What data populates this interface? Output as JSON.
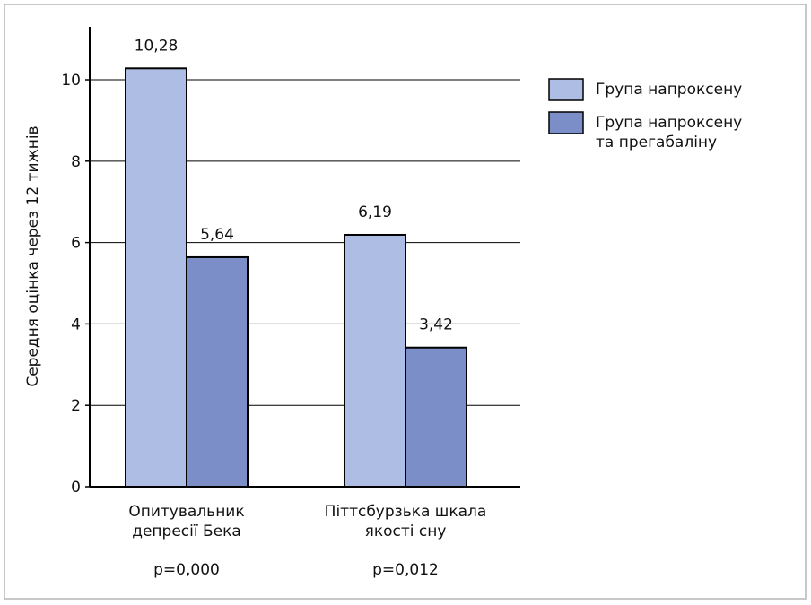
{
  "chart_data": {
    "type": "bar",
    "y_label": "Середня оцінка через 12 тижнів",
    "categories": [
      "Опитувальник\nдепресії Бека",
      "Піттсбурзька шкала\nякості сну"
    ],
    "annotations": [
      "p=0,000",
      "p=0,012"
    ],
    "series": [
      {
        "name": "Група напроксену",
        "color": "#aebde3",
        "values": [
          10.28,
          6.19
        ],
        "value_labels": [
          "10,28",
          "6,19"
        ]
      },
      {
        "name": "Група напроксену\nта прегабаліну",
        "color": "#7b8ec8",
        "values": [
          5.64,
          3.42
        ],
        "value_labels": [
          "5,64",
          "3,42"
        ]
      }
    ],
    "ylim": [
      0,
      11.3
    ],
    "yticks": [
      0,
      2,
      4,
      6,
      8,
      10
    ],
    "grid": true,
    "legend": "right"
  }
}
